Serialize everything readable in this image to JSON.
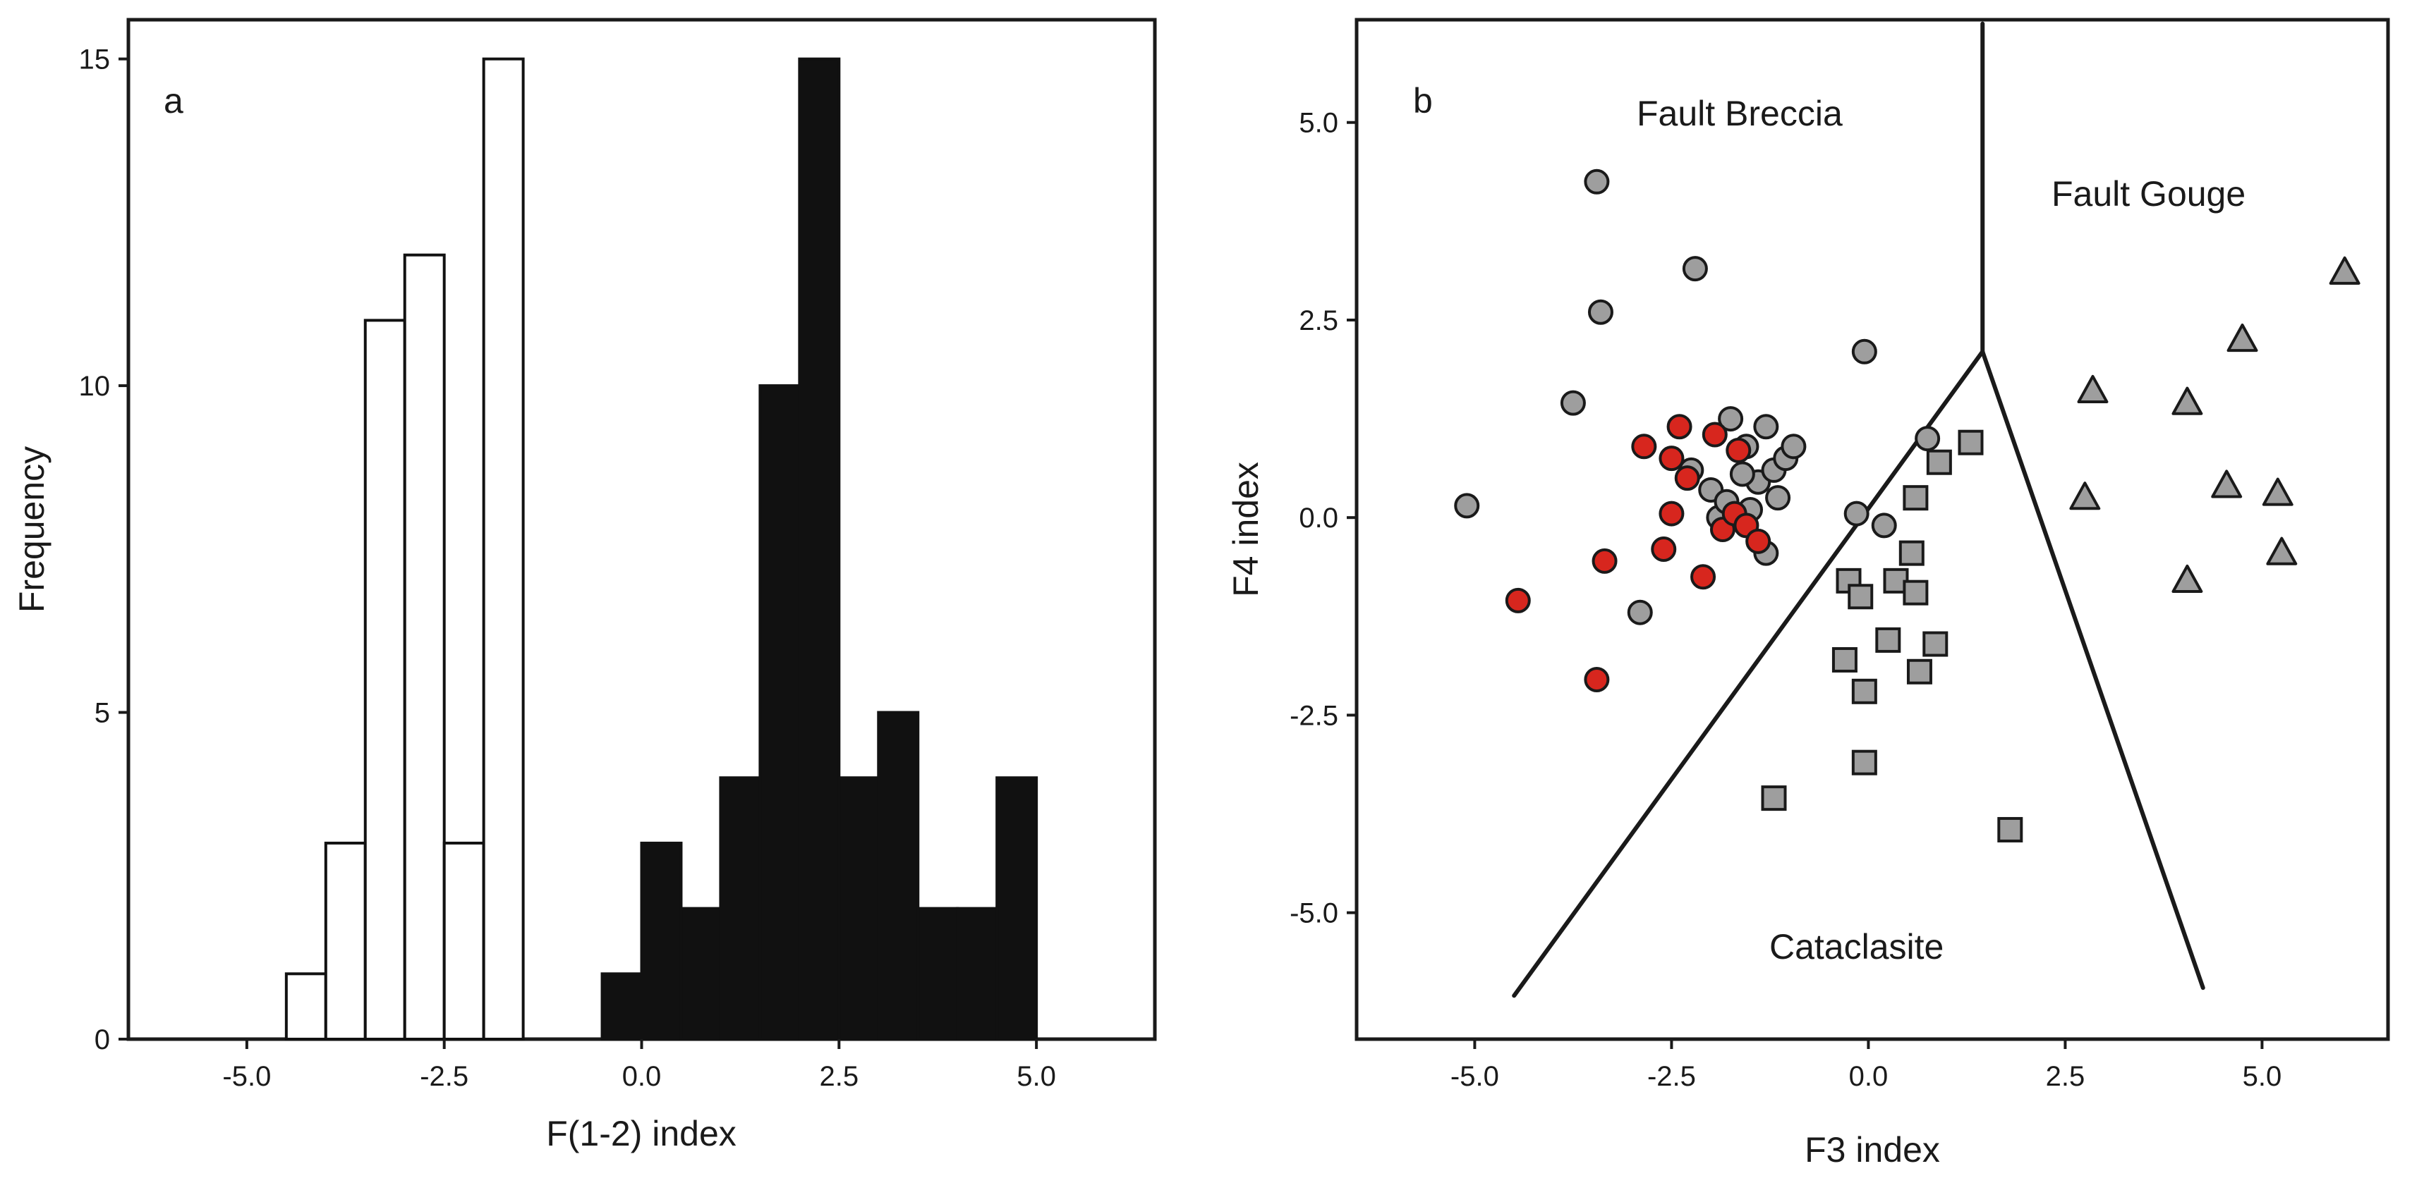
{
  "chart_data": [
    {
      "panel": "a",
      "type": "bar",
      "xlabel": "F(1-2) index",
      "ylabel": "Frequency",
      "xlim": [
        -6.5,
        6.5
      ],
      "ylim": [
        0,
        15.6
      ],
      "xticks": [
        "-5.0",
        "-2.5",
        "0.0",
        "2.5",
        "5.0"
      ],
      "yticks": [
        "0",
        "5",
        "10",
        "15"
      ],
      "bin_width": 0.5,
      "series": [
        {
          "name": "open bars",
          "fill": "#ffffff",
          "bins": [
            {
              "x0": -4.5,
              "count": 1
            },
            {
              "x0": -4.0,
              "count": 3
            },
            {
              "x0": -3.5,
              "count": 11
            },
            {
              "x0": -3.0,
              "count": 12
            },
            {
              "x0": -2.5,
              "count": 3
            },
            {
              "x0": -2.0,
              "count": 15
            }
          ]
        },
        {
          "name": "filled bars",
          "fill": "#111111",
          "bins": [
            {
              "x0": -0.5,
              "count": 1
            },
            {
              "x0": 0.0,
              "count": 3
            },
            {
              "x0": 0.5,
              "count": 2
            },
            {
              "x0": 1.0,
              "count": 4
            },
            {
              "x0": 1.5,
              "count": 10
            },
            {
              "x0": 2.0,
              "count": 15
            },
            {
              "x0": 2.5,
              "count": 4
            },
            {
              "x0": 3.0,
              "count": 5
            },
            {
              "x0": 3.5,
              "count": 2
            },
            {
              "x0": 4.0,
              "count": 2
            },
            {
              "x0": 4.5,
              "count": 4
            }
          ]
        }
      ]
    },
    {
      "panel": "b",
      "type": "scatter",
      "xlabel": "F3 index",
      "ylabel": "F4 index",
      "xlim": [
        -6.5,
        6.6
      ],
      "ylim": [
        -6.6,
        6.3
      ],
      "xticks": [
        "-5.0",
        "-2.5",
        "0.0",
        "2.5",
        "5.0"
      ],
      "yticks": [
        "5.0",
        "2.5",
        "0.0",
        "-2.5",
        "-5.0"
      ],
      "regions": [
        "Fault Breccia",
        "Fault Gouge",
        "Cataclasite"
      ],
      "boundaries": [
        [
          [
            1.45,
            6.25
          ],
          [
            1.45,
            2.1
          ]
        ],
        [
          [
            1.45,
            2.1
          ],
          [
            -4.5,
            -6.05
          ]
        ],
        [
          [
            1.45,
            2.1
          ],
          [
            4.25,
            -5.95
          ]
        ]
      ],
      "series": [
        {
          "name": "gray circles",
          "marker": "circle",
          "color": "#9e9e9e",
          "points": [
            [
              -5.1,
              0.15
            ],
            [
              -3.45,
              4.25
            ],
            [
              -3.4,
              2.6
            ],
            [
              -2.2,
              3.15
            ],
            [
              -3.75,
              1.45
            ],
            [
              -2.9,
              -1.2
            ],
            [
              -0.05,
              2.1
            ],
            [
              0.75,
              1.0
            ],
            [
              -0.15,
              0.05
            ],
            [
              0.2,
              -0.1
            ],
            [
              -2.25,
              0.6
            ],
            [
              -2.0,
              0.35
            ],
            [
              -1.9,
              0.0
            ],
            [
              -1.75,
              1.25
            ],
            [
              -1.55,
              0.9
            ],
            [
              -1.4,
              0.45
            ],
            [
              -1.3,
              1.15
            ],
            [
              -1.2,
              0.6
            ],
            [
              -1.15,
              0.25
            ],
            [
              -1.05,
              0.75
            ],
            [
              -0.95,
              0.9
            ],
            [
              -1.6,
              0.55
            ],
            [
              -1.5,
              0.1
            ],
            [
              -1.3,
              -0.45
            ],
            [
              -1.8,
              0.2
            ]
          ]
        },
        {
          "name": "red circles",
          "marker": "circle",
          "color": "#d7261e",
          "points": [
            [
              -4.45,
              -1.05
            ],
            [
              -3.45,
              -2.05
            ],
            [
              -3.35,
              -0.55
            ],
            [
              -2.85,
              0.9
            ],
            [
              -2.6,
              -0.4
            ],
            [
              -2.5,
              0.75
            ],
            [
              -2.4,
              1.15
            ],
            [
              -2.3,
              0.5
            ],
            [
              -2.1,
              -0.75
            ],
            [
              -1.95,
              1.05
            ],
            [
              -1.85,
              -0.15
            ],
            [
              -1.7,
              0.05
            ],
            [
              -1.65,
              0.85
            ],
            [
              -1.55,
              -0.1
            ],
            [
              -1.4,
              -0.3
            ],
            [
              -2.5,
              0.05
            ]
          ]
        },
        {
          "name": "gray squares",
          "marker": "square",
          "color": "#9e9e9e",
          "points": [
            [
              -0.25,
              -0.8
            ],
            [
              -0.1,
              -1.0
            ],
            [
              -0.3,
              -1.8
            ],
            [
              -0.05,
              -2.2
            ],
            [
              0.25,
              -1.55
            ],
            [
              0.35,
              -0.8
            ],
            [
              0.55,
              -0.45
            ],
            [
              0.6,
              0.25
            ],
            [
              0.6,
              -0.95
            ],
            [
              0.65,
              -1.95
            ],
            [
              0.9,
              0.7
            ],
            [
              1.3,
              0.95
            ],
            [
              0.85,
              -1.6
            ],
            [
              -0.05,
              -3.1
            ],
            [
              -1.2,
              -3.55
            ],
            [
              1.8,
              -3.95
            ]
          ]
        },
        {
          "name": "gray triangles",
          "marker": "triangle",
          "color": "#9e9e9e",
          "points": [
            [
              2.85,
              1.6
            ],
            [
              2.75,
              0.25
            ],
            [
              4.05,
              1.45
            ],
            [
              4.75,
              2.25
            ],
            [
              4.55,
              0.4
            ],
            [
              5.2,
              0.3
            ],
            [
              5.25,
              -0.45
            ],
            [
              4.05,
              -0.8
            ],
            [
              6.05,
              3.1
            ]
          ]
        }
      ]
    }
  ]
}
